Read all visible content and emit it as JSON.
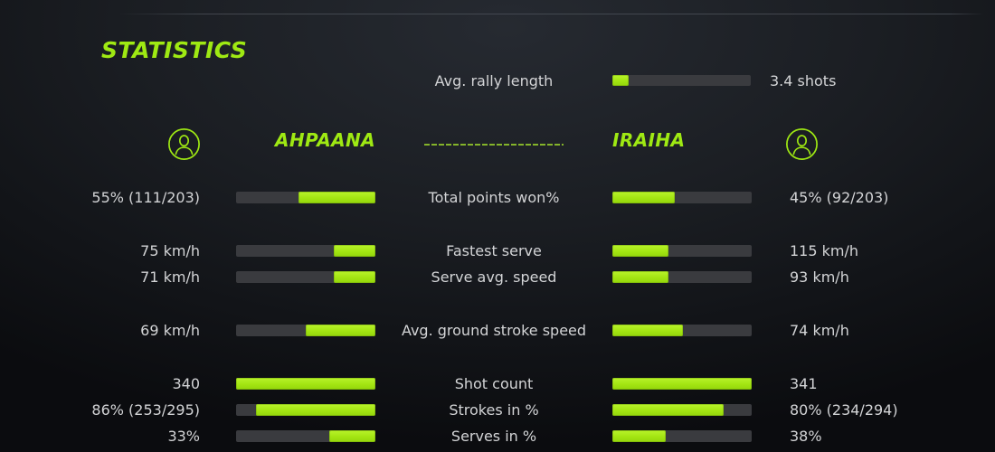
{
  "title": "STATISTICS",
  "colors": {
    "accent": "#9fe913",
    "bar_fill": "#a3e512",
    "bar_track": "#3a3b3f",
    "text": "#d3d4d6"
  },
  "rally": {
    "label": "Avg. rally length",
    "value": "3.4 shots",
    "fill_pct": 12
  },
  "players": {
    "left": "AHPAANA",
    "right": "IRAIHA"
  },
  "stat_groups": [
    [
      {
        "label": "Total points won%",
        "left_value": "55% (111/203)",
        "left_fill": 55,
        "right_value": "45% (92/203)",
        "right_fill": 45
      }
    ],
    [
      {
        "label": "Fastest serve",
        "left_value": "75 km/h",
        "left_fill": 30,
        "right_value": "115 km/h",
        "right_fill": 40.5
      },
      {
        "label": "Serve avg. speed",
        "left_value": "71 km/h",
        "left_fill": 30,
        "right_value": "93 km/h",
        "right_fill": 40.5
      }
    ],
    [
      {
        "label": "Avg. ground stroke speed",
        "left_value": "69 km/h",
        "left_fill": 50,
        "right_value": "74 km/h",
        "right_fill": 50.5
      }
    ],
    [
      {
        "label": "Shot count",
        "left_value": "340",
        "left_fill": 99.7,
        "right_value": "341",
        "right_fill": 100
      },
      {
        "label": "Strokes in %",
        "left_value": "86% (253/295)",
        "left_fill": 86,
        "right_value": "80% (234/294)",
        "right_fill": 80
      },
      {
        "label": "Serves in %",
        "left_value": "33%",
        "left_fill": 33,
        "right_value": "38%",
        "right_fill": 38
      }
    ]
  ]
}
